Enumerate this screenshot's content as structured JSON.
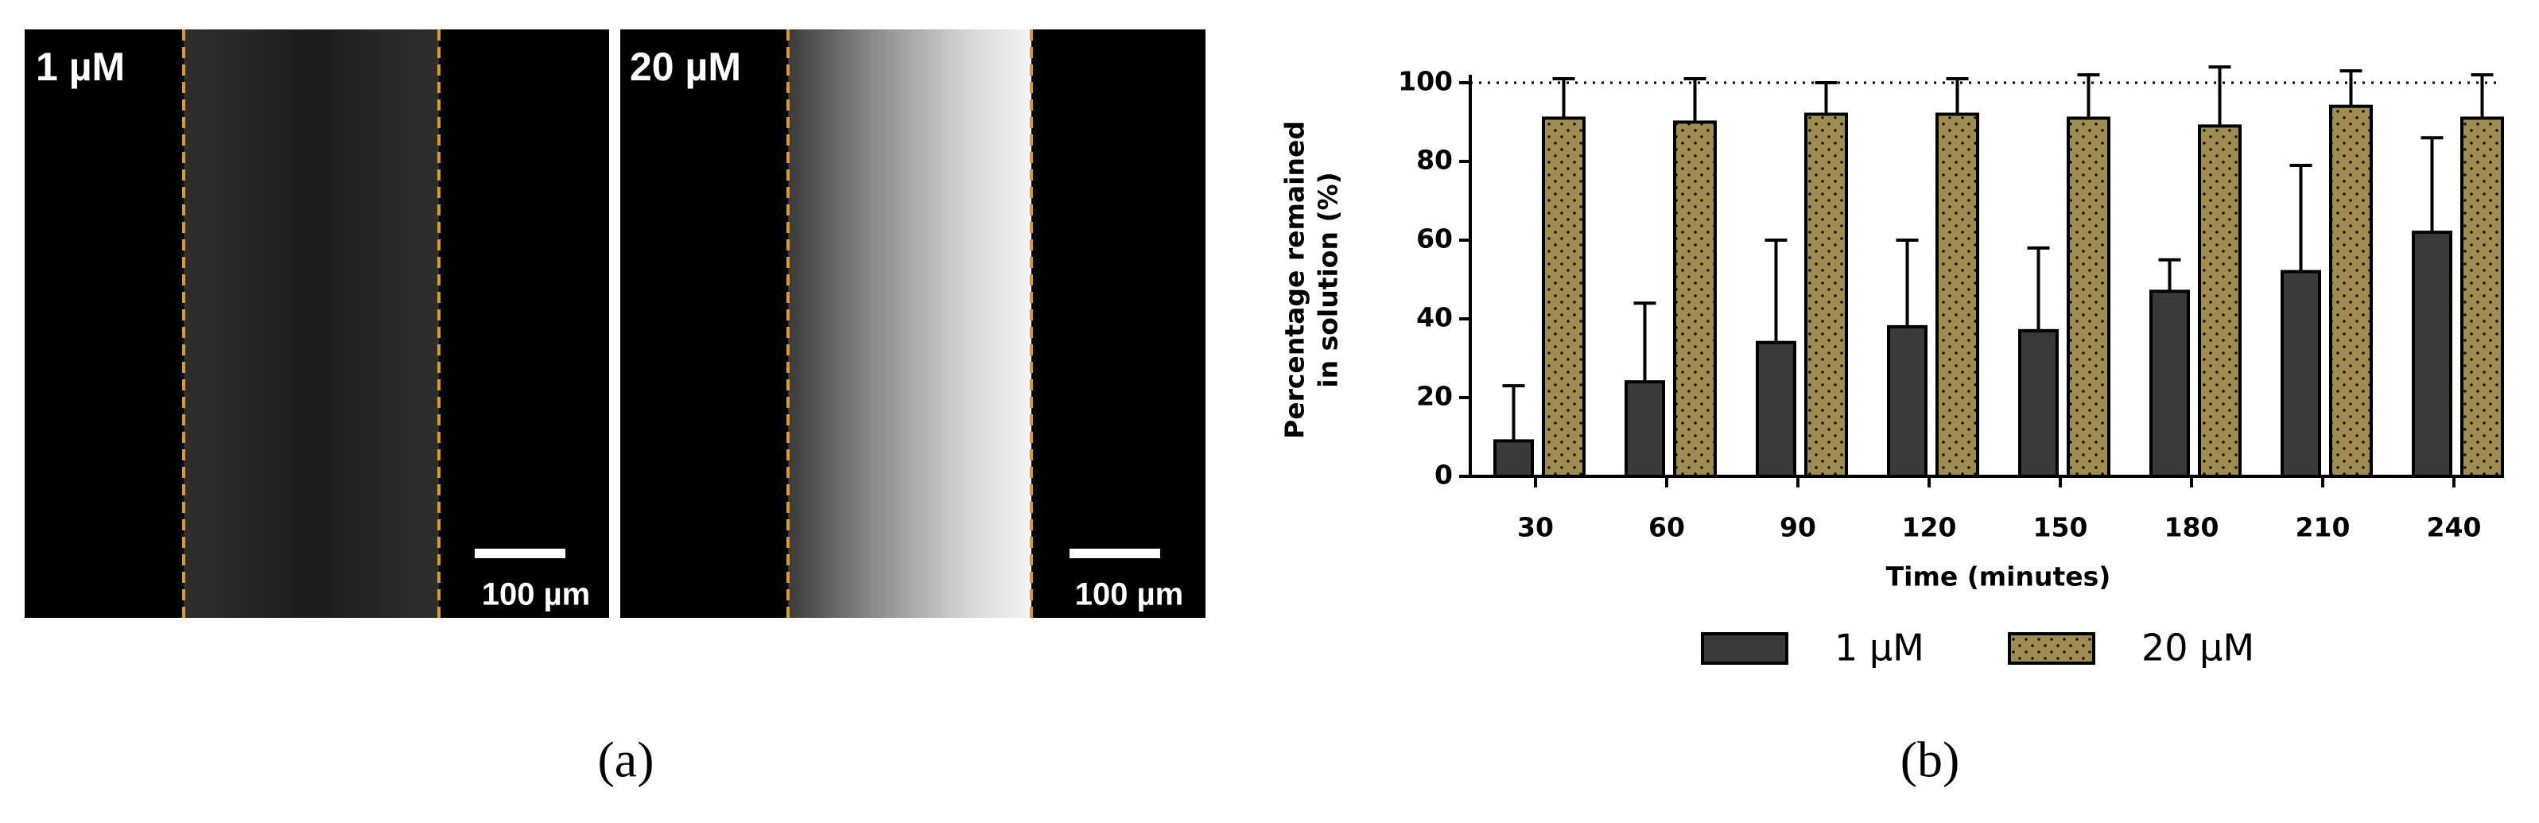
{
  "images": [
    {
      "label": "1 µM",
      "scale_bar": "100 µm"
    },
    {
      "label": "20 µM",
      "scale_bar": "100 µm"
    }
  ],
  "panel_labels": [
    "(a)",
    "(b)"
  ],
  "chart_data": {
    "type": "bar",
    "xlabel": "Time (minutes)",
    "ylabel": [
      "Percentage remained",
      "in solution (%)"
    ],
    "categories": [
      "30",
      "60",
      "90",
      "120",
      "150",
      "180",
      "210",
      "240"
    ],
    "series": [
      {
        "name": "1 µM",
        "color": "#3a3a3a",
        "pattern": "solid",
        "values": [
          9,
          24,
          34,
          38,
          37,
          47,
          52,
          62
        ],
        "errors": [
          14,
          20,
          26,
          22,
          21,
          8,
          27,
          24
        ]
      },
      {
        "name": "20 µM",
        "color": "#9e8d4e",
        "pattern": "dots",
        "values": [
          91,
          90,
          92,
          92,
          91,
          89,
          94,
          91
        ],
        "errors": [
          10,
          11,
          8,
          9,
          11,
          15,
          9,
          11
        ]
      }
    ],
    "ylim": [
      0,
      100
    ],
    "yticks": [
      0,
      20,
      40,
      60,
      80,
      100
    ],
    "reference_line": 100,
    "legend": "bottom"
  }
}
